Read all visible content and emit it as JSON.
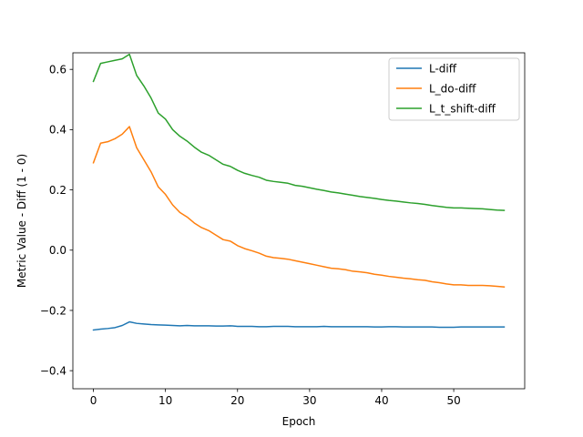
{
  "chart_data": {
    "type": "line",
    "title": "",
    "xlabel": "Epoch",
    "ylabel": "Metric Value - Diff (1 - 0)",
    "xlim": [
      -2.85,
      59.85
    ],
    "ylim": [
      -0.46,
      0.655
    ],
    "xticks": [
      0,
      10,
      20,
      30,
      40,
      50
    ],
    "yticks": [
      -0.4,
      -0.2,
      0.0,
      0.2,
      0.4,
      0.6
    ],
    "ytick_labels": [
      "−0.4",
      "−0.2",
      "0.0",
      "0.2",
      "0.4",
      "0.6"
    ],
    "grid": false,
    "legend_position": "upper right",
    "x": [
      0,
      1,
      2,
      3,
      4,
      5,
      6,
      7,
      8,
      9,
      10,
      11,
      12,
      13,
      14,
      15,
      16,
      17,
      18,
      19,
      20,
      21,
      22,
      23,
      24,
      25,
      26,
      27,
      28,
      29,
      30,
      31,
      32,
      33,
      34,
      35,
      36,
      37,
      38,
      39,
      40,
      41,
      42,
      43,
      44,
      45,
      46,
      47,
      48,
      49,
      50,
      51,
      52,
      53,
      54,
      55,
      56,
      57
    ],
    "series": [
      {
        "name": "L-diff",
        "color": "#1f77b4",
        "values": [
          -0.265,
          -0.262,
          -0.26,
          -0.257,
          -0.25,
          -0.238,
          -0.243,
          -0.245,
          -0.247,
          -0.248,
          -0.249,
          -0.25,
          -0.251,
          -0.25,
          -0.251,
          -0.251,
          -0.251,
          -0.252,
          -0.252,
          -0.251,
          -0.253,
          -0.253,
          -0.253,
          -0.254,
          -0.254,
          -0.253,
          -0.253,
          -0.253,
          -0.254,
          -0.254,
          -0.254,
          -0.254,
          -0.253,
          -0.254,
          -0.254,
          -0.254,
          -0.254,
          -0.254,
          -0.254,
          -0.255,
          -0.255,
          -0.254,
          -0.254,
          -0.255,
          -0.255,
          -0.255,
          -0.255,
          -0.255,
          -0.256,
          -0.256,
          -0.256,
          -0.255,
          -0.255,
          -0.255,
          -0.255,
          -0.255,
          -0.255,
          -0.255
        ]
      },
      {
        "name": "L_do-diff",
        "color": "#ff7f0e",
        "values": [
          0.29,
          0.355,
          0.36,
          0.37,
          0.385,
          0.41,
          0.34,
          0.3,
          0.26,
          0.21,
          0.185,
          0.15,
          0.125,
          0.11,
          0.09,
          0.075,
          0.065,
          0.05,
          0.035,
          0.03,
          0.015,
          0.005,
          -0.002,
          -0.01,
          -0.02,
          -0.025,
          -0.027,
          -0.03,
          -0.035,
          -0.04,
          -0.045,
          -0.05,
          -0.055,
          -0.06,
          -0.062,
          -0.065,
          -0.07,
          -0.072,
          -0.075,
          -0.08,
          -0.083,
          -0.087,
          -0.09,
          -0.093,
          -0.095,
          -0.098,
          -0.1,
          -0.105,
          -0.108,
          -0.112,
          -0.115,
          -0.115,
          -0.117,
          -0.117,
          -0.117,
          -0.118,
          -0.12,
          -0.122
        ]
      },
      {
        "name": "L_t_shift-diff",
        "color": "#2ca02c",
        "values": [
          0.56,
          0.62,
          0.625,
          0.63,
          0.635,
          0.65,
          0.58,
          0.545,
          0.505,
          0.455,
          0.435,
          0.4,
          0.378,
          0.362,
          0.342,
          0.325,
          0.315,
          0.3,
          0.285,
          0.278,
          0.265,
          0.255,
          0.248,
          0.242,
          0.232,
          0.228,
          0.225,
          0.222,
          0.215,
          0.212,
          0.207,
          0.202,
          0.198,
          0.193,
          0.19,
          0.186,
          0.182,
          0.178,
          0.175,
          0.172,
          0.168,
          0.165,
          0.163,
          0.16,
          0.157,
          0.155,
          0.152,
          0.148,
          0.145,
          0.142,
          0.14,
          0.14,
          0.139,
          0.138,
          0.137,
          0.135,
          0.133,
          0.132
        ]
      }
    ]
  }
}
